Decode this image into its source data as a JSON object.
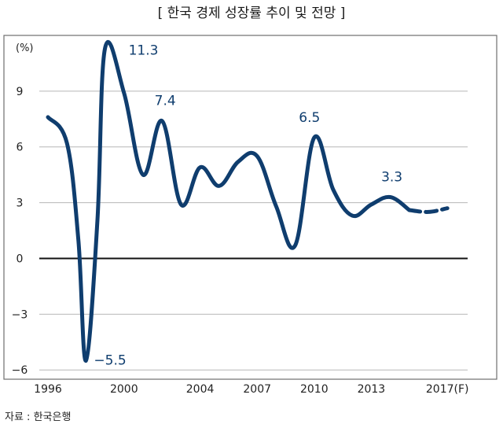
{
  "chart_data": {
    "type": "line",
    "title": "[ 한국 경제 성장률 추이 및 전망 ]",
    "ylabel": "(%)",
    "xlabel": "",
    "ylim": [
      -6,
      12
    ],
    "xlim": [
      1996,
      2018
    ],
    "yticks": [
      -6,
      -3,
      0,
      3,
      6,
      9
    ],
    "xticks": [
      "1996",
      "2000",
      "2004",
      "2007",
      "2010",
      "2013",
      "2017(F)"
    ],
    "grid": true,
    "series": [
      {
        "line": "solid",
        "x": [
          1996,
          1997,
          1997.6,
          1998,
          1998.6,
          1999,
          2000,
          2001,
          2002,
          2003,
          2004,
          2005,
          2006,
          2007,
          2008,
          2009,
          2010,
          2011,
          2012,
          2013,
          2014,
          2015
        ],
        "y": [
          7.6,
          6.2,
          1.0,
          -5.5,
          2.0,
          11.3,
          8.9,
          4.5,
          7.4,
          2.9,
          4.9,
          3.9,
          5.2,
          5.5,
          2.8,
          0.7,
          6.5,
          3.7,
          2.3,
          2.9,
          3.3,
          2.6
        ]
      },
      {
        "line": "dashed",
        "x": [
          2015,
          2016,
          2017
        ],
        "y": [
          2.6,
          2.5,
          2.7
        ]
      }
    ],
    "annotations": [
      {
        "text": "11.3",
        "x": 1999,
        "y": 11.3
      },
      {
        "text": "−5.5",
        "x": 1998,
        "y": -5.5
      },
      {
        "text": "7.4",
        "x": 2002,
        "y": 7.4
      },
      {
        "text": "6.5",
        "x": 2010,
        "y": 6.5
      },
      {
        "text": "3.3",
        "x": 2014,
        "y": 3.3
      }
    ],
    "colors": {
      "line": "#0f3d6e",
      "grid": "#b7b7b7",
      "zero": "#111111",
      "frame": "#6f6f6f"
    }
  },
  "source": "자료 : 한국은행"
}
